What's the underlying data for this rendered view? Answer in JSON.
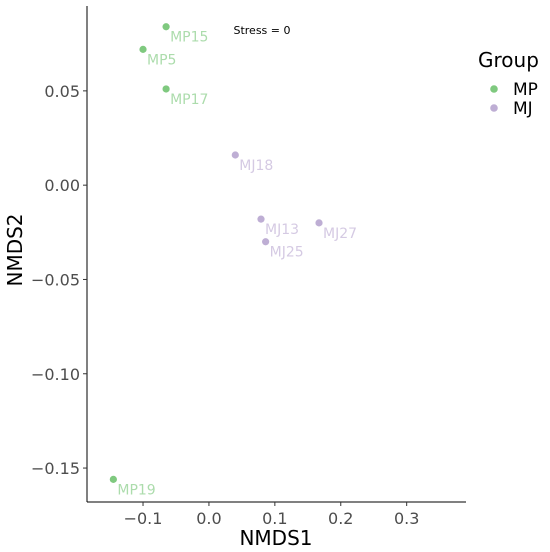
{
  "chart_data": {
    "type": "scatter",
    "xlabel": "NMDS1",
    "ylabel": "NMDS2",
    "xlim": [
      -0.185,
      0.39
    ],
    "ylim": [
      -0.168,
      0.095
    ],
    "x_ticks": [
      -0.1,
      0.0,
      0.1,
      0.2,
      0.3
    ],
    "x_tick_labels": [
      "−0.1",
      "0.0",
      "0.1",
      "0.2",
      "0.3"
    ],
    "y_ticks": [
      -0.15,
      -0.1,
      -0.05,
      0.0,
      0.05
    ],
    "y_tick_labels": [
      "−0.15",
      "−0.10",
      "−0.05",
      "0.00",
      "0.05"
    ],
    "grid": false,
    "annotation": "Stress = 0",
    "legend": {
      "title": "Group",
      "placement": "right",
      "entries": [
        {
          "name": "MP",
          "color": "#7fc97f"
        },
        {
          "name": "MJ",
          "color": "#beaed4"
        }
      ]
    },
    "points": [
      {
        "label": "MP15",
        "group": "MP",
        "x": -0.065,
        "y": 0.084
      },
      {
        "label": "MP5",
        "group": "MP",
        "x": -0.1,
        "y": 0.072
      },
      {
        "label": "MP17",
        "group": "MP",
        "x": -0.065,
        "y": 0.051
      },
      {
        "label": "MP19",
        "group": "MP",
        "x": -0.145,
        "y": -0.156
      },
      {
        "label": "MJ18",
        "group": "MJ",
        "x": 0.04,
        "y": 0.016
      },
      {
        "label": "MJ13",
        "group": "MJ",
        "x": 0.079,
        "y": -0.018
      },
      {
        "label": "MJ27",
        "group": "MJ",
        "x": 0.167,
        "y": -0.02
      },
      {
        "label": "MJ25",
        "group": "MJ",
        "x": 0.086,
        "y": -0.03
      }
    ]
  }
}
